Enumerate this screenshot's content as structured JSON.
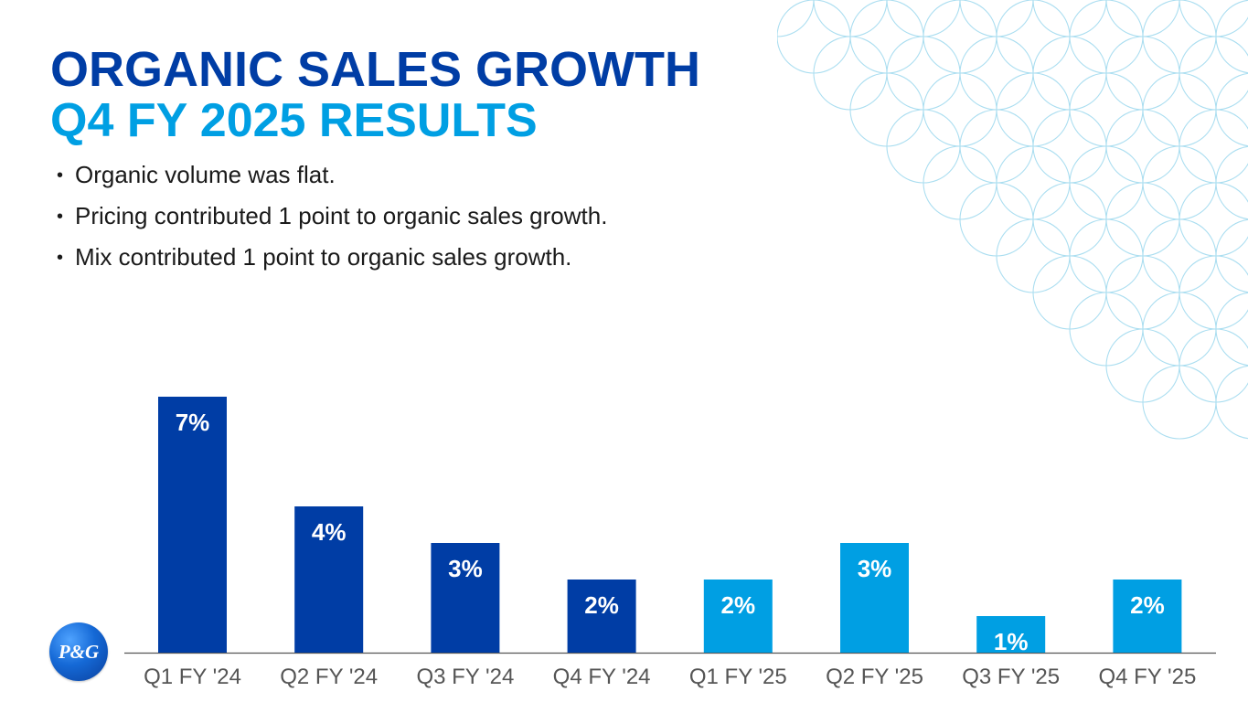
{
  "header": {
    "title": "ORGANIC SALES GROWTH",
    "subtitle": "Q4 FY 2025 RESULTS"
  },
  "bullets": [
    "Organic volume was flat.",
    "Pricing contributed 1 point to organic sales growth.",
    "Mix contributed 1 point to organic sales growth."
  ],
  "logo": {
    "text": "P&G"
  },
  "colors": {
    "fy24": "#003da5",
    "fy25": "#009fe3",
    "title": "#003da5",
    "subtitle": "#009fe3"
  },
  "chart_data": {
    "type": "bar",
    "categories": [
      "Q1 FY '24",
      "Q2 FY '24",
      "Q3 FY '24",
      "Q4 FY '24",
      "Q1 FY '25",
      "Q2 FY '25",
      "Q3 FY '25",
      "Q4 FY '25"
    ],
    "values": [
      7,
      4,
      3,
      2,
      2,
      3,
      1,
      2
    ],
    "data_labels": [
      "7%",
      "4%",
      "3%",
      "2%",
      "2%",
      "3%",
      "1%",
      "2%"
    ],
    "bar_colors": [
      "#003da5",
      "#003da5",
      "#003da5",
      "#003da5",
      "#009fe3",
      "#009fe3",
      "#009fe3",
      "#009fe3"
    ],
    "ylim": [
      0,
      7
    ],
    "grid": false,
    "legend": "none"
  }
}
